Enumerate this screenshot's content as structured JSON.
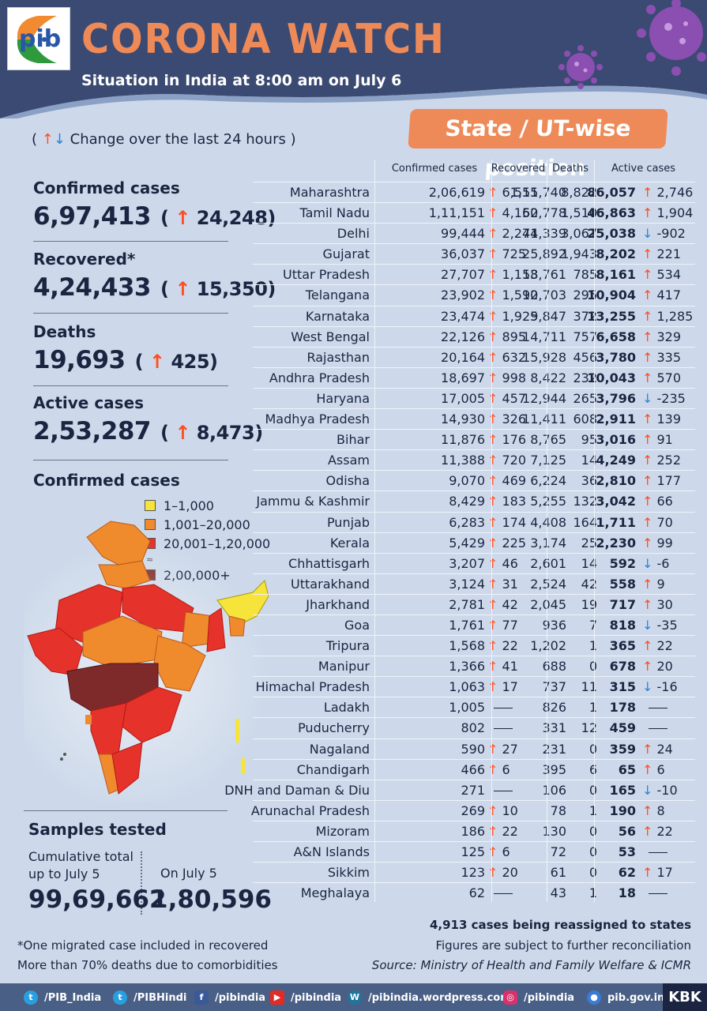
{
  "header": {
    "logo_text": "pib",
    "title": "CORONA WATCH",
    "subtitle": "Situation in India at 8:00 am on July 6",
    "badge": "State / UT-wise position"
  },
  "legend_change": "Change over the last 24 hours",
  "summary": {
    "confirmed": {
      "label": "Confirmed cases",
      "value": "6,97,413",
      "change": "24,248"
    },
    "recovered": {
      "label": "Recovered*",
      "value": "4,24,433",
      "change": "15,350"
    },
    "deaths": {
      "label": "Deaths",
      "value": "19,693",
      "change": "425"
    },
    "active": {
      "label": "Active cases",
      "value": "2,53,287",
      "change": "8,473"
    }
  },
  "map": {
    "title": "Confirmed cases",
    "legend": [
      {
        "label": "1–1,000",
        "color": "#f7e43a"
      },
      {
        "label": "1,001–20,000",
        "color": "#ef8a2d"
      },
      {
        "label": "20,001–1,20,000",
        "color": "#e5322a"
      },
      {
        "label": "2,00,000+",
        "color": "#7f2a2a"
      }
    ]
  },
  "table": {
    "headers": {
      "confirmed": "Confirmed cases",
      "recovered": "Recovered",
      "deaths": "Deaths",
      "active": "Active cases"
    },
    "rows": [
      {
        "state": "Maharashtra",
        "confirmed": "2,06,619",
        "conf_dir": "up",
        "conf_change": "6,555",
        "recovered": "1,11,740",
        "deaths": "8,822",
        "active": "86,057",
        "act_dir": "up",
        "act_change": "2,746"
      },
      {
        "state": "Tamil Nadu",
        "confirmed": "1,11,151",
        "conf_dir": "up",
        "conf_change": "4,150",
        "recovered": "62,778",
        "deaths": "1,510",
        "active": "46,863",
        "act_dir": "up",
        "act_change": "1,904"
      },
      {
        "state": "Delhi",
        "confirmed": "99,444",
        "conf_dir": "up",
        "conf_change": "2,244",
        "recovered": "71,339",
        "deaths": "3,067",
        "active": "25,038",
        "act_dir": "down",
        "act_change": "-902"
      },
      {
        "state": "Gujarat",
        "confirmed": "36,037",
        "conf_dir": "up",
        "conf_change": "725",
        "recovered": "25,892",
        "deaths": "1,943",
        "active": "8,202",
        "act_dir": "up",
        "act_change": "221"
      },
      {
        "state": "Uttar Pradesh",
        "confirmed": "27,707",
        "conf_dir": "up",
        "conf_change": "1,153",
        "recovered": "18,761",
        "deaths": "785",
        "active": "8,161",
        "act_dir": "up",
        "act_change": "534"
      },
      {
        "state": "Telangana",
        "confirmed": "23,902",
        "conf_dir": "up",
        "conf_change": "1,590",
        "recovered": "12,703",
        "deaths": "295",
        "active": "10,904",
        "act_dir": "up",
        "act_change": "417"
      },
      {
        "state": "Karnataka",
        "confirmed": "23,474",
        "conf_dir": "up",
        "conf_change": "1,925",
        "recovered": "9,847",
        "deaths": "372",
        "active": "13,255",
        "act_dir": "up",
        "act_change": "1,285"
      },
      {
        "state": "West Bengal",
        "confirmed": "22,126",
        "conf_dir": "up",
        "conf_change": "895",
        "recovered": "14,711",
        "deaths": "757",
        "active": "6,658",
        "act_dir": "up",
        "act_change": "329"
      },
      {
        "state": "Rajasthan",
        "confirmed": "20,164",
        "conf_dir": "up",
        "conf_change": "632",
        "recovered": "15,928",
        "deaths": "456",
        "active": "3,780",
        "act_dir": "up",
        "act_change": "335"
      },
      {
        "state": "Andhra Pradesh",
        "confirmed": "18,697",
        "conf_dir": "up",
        "conf_change": "998",
        "recovered": "8,422",
        "deaths": "232",
        "active": "10,043",
        "act_dir": "up",
        "act_change": "570"
      },
      {
        "state": "Haryana",
        "confirmed": "17,005",
        "conf_dir": "up",
        "conf_change": "457",
        "recovered": "12,944",
        "deaths": "265",
        "active": "3,796",
        "act_dir": "down",
        "act_change": "-235"
      },
      {
        "state": "Madhya Pradesh",
        "confirmed": "14,930",
        "conf_dir": "up",
        "conf_change": "326",
        "recovered": "11,411",
        "deaths": "608",
        "active": "2,911",
        "act_dir": "up",
        "act_change": "139"
      },
      {
        "state": "Bihar",
        "confirmed": "11,876",
        "conf_dir": "up",
        "conf_change": "176",
        "recovered": "8,765",
        "deaths": "95",
        "active": "3,016",
        "act_dir": "up",
        "act_change": "91"
      },
      {
        "state": "Assam",
        "confirmed": "11,388",
        "conf_dir": "up",
        "conf_change": "720",
        "recovered": "7,125",
        "deaths": "14",
        "active": "4,249",
        "act_dir": "up",
        "act_change": "252"
      },
      {
        "state": "Odisha",
        "confirmed": "9,070",
        "conf_dir": "up",
        "conf_change": "469",
        "recovered": "6,224",
        "deaths": "36",
        "active": "2,810",
        "act_dir": "up",
        "act_change": "177"
      },
      {
        "state": "Jammu & Kashmir",
        "confirmed": "8,429",
        "conf_dir": "up",
        "conf_change": "183",
        "recovered": "5,255",
        "deaths": "132",
        "active": "3,042",
        "act_dir": "up",
        "act_change": "66"
      },
      {
        "state": "Punjab",
        "confirmed": "6,283",
        "conf_dir": "up",
        "conf_change": "174",
        "recovered": "4,408",
        "deaths": "164",
        "active": "1,711",
        "act_dir": "up",
        "act_change": "70"
      },
      {
        "state": "Kerala",
        "confirmed": "5,429",
        "conf_dir": "up",
        "conf_change": "225",
        "recovered": "3,174",
        "deaths": "25",
        "active": "2,230",
        "act_dir": "up",
        "act_change": "99"
      },
      {
        "state": "Chhattisgarh",
        "confirmed": "3,207",
        "conf_dir": "up",
        "conf_change": "46",
        "recovered": "2,601",
        "deaths": "14",
        "active": "592",
        "act_dir": "down",
        "act_change": "-6"
      },
      {
        "state": "Uttarakhand",
        "confirmed": "3,124",
        "conf_dir": "up",
        "conf_change": "31",
        "recovered": "2,524",
        "deaths": "42",
        "active": "558",
        "act_dir": "up",
        "act_change": "9"
      },
      {
        "state": "Jharkhand",
        "confirmed": "2,781",
        "conf_dir": "up",
        "conf_change": "42",
        "recovered": "2,045",
        "deaths": "19",
        "active": "717",
        "act_dir": "up",
        "act_change": "30"
      },
      {
        "state": "Goa",
        "confirmed": "1,761",
        "conf_dir": "up",
        "conf_change": "77",
        "recovered": "936",
        "deaths": "7",
        "active": "818",
        "act_dir": "down",
        "act_change": "-35"
      },
      {
        "state": "Tripura",
        "confirmed": "1,568",
        "conf_dir": "up",
        "conf_change": "22",
        "recovered": "1,202",
        "deaths": "1",
        "active": "365",
        "act_dir": "up",
        "act_change": "22"
      },
      {
        "state": "Manipur",
        "confirmed": "1,366",
        "conf_dir": "up",
        "conf_change": "41",
        "recovered": "688",
        "deaths": "0",
        "active": "678",
        "act_dir": "up",
        "act_change": "20"
      },
      {
        "state": "Himachal Pradesh",
        "confirmed": "1,063",
        "conf_dir": "up",
        "conf_change": "17",
        "recovered": "737",
        "deaths": "11",
        "active": "315",
        "act_dir": "down",
        "act_change": "-16"
      },
      {
        "state": "Ladakh",
        "confirmed": "1,005",
        "conf_dir": "none",
        "conf_change": "",
        "recovered": "826",
        "deaths": "1",
        "active": "178",
        "act_dir": "none",
        "act_change": ""
      },
      {
        "state": "Puducherry",
        "confirmed": "802",
        "conf_dir": "none",
        "conf_change": "",
        "recovered": "331",
        "deaths": "12",
        "active": "459",
        "act_dir": "none",
        "act_change": ""
      },
      {
        "state": "Nagaland",
        "confirmed": "590",
        "conf_dir": "up",
        "conf_change": "27",
        "recovered": "231",
        "deaths": "0",
        "active": "359",
        "act_dir": "up",
        "act_change": "24"
      },
      {
        "state": "Chandigarh",
        "confirmed": "466",
        "conf_dir": "up",
        "conf_change": "6",
        "recovered": "395",
        "deaths": "6",
        "active": "65",
        "act_dir": "up",
        "act_change": "6"
      },
      {
        "state": "DNH and Daman & Diu",
        "confirmed": "271",
        "conf_dir": "none",
        "conf_change": "",
        "recovered": "106",
        "deaths": "0",
        "active": "165",
        "act_dir": "down",
        "act_change": "-10"
      },
      {
        "state": "Arunachal Pradesh",
        "confirmed": "269",
        "conf_dir": "up",
        "conf_change": "10",
        "recovered": "78",
        "deaths": "1",
        "active": "190",
        "act_dir": "up",
        "act_change": "8"
      },
      {
        "state": "Mizoram",
        "confirmed": "186",
        "conf_dir": "up",
        "conf_change": "22",
        "recovered": "130",
        "deaths": "0",
        "active": "56",
        "act_dir": "up",
        "act_change": "22"
      },
      {
        "state": "A&N Islands",
        "confirmed": "125",
        "conf_dir": "up",
        "conf_change": "6",
        "recovered": "72",
        "deaths": "0",
        "active": "53",
        "act_dir": "none",
        "act_change": ""
      },
      {
        "state": "Sikkim",
        "confirmed": "123",
        "conf_dir": "up",
        "conf_change": "20",
        "recovered": "61",
        "deaths": "0",
        "active": "62",
        "act_dir": "up",
        "act_change": "17"
      },
      {
        "state": "Meghalaya",
        "confirmed": "62",
        "conf_dir": "none",
        "conf_change": "",
        "recovered": "43",
        "deaths": "1",
        "active": "18",
        "act_dir": "none",
        "act_change": ""
      }
    ]
  },
  "samples": {
    "title": "Samples tested",
    "cumulative_label_1": "Cumulative total",
    "cumulative_label_2": "up to July 5",
    "cumulative_value": "99,69,662",
    "day_label": "On July 5",
    "day_value": "1,80,596"
  },
  "notes": {
    "reassigned": "4,913 cases being reassigned to states",
    "migrated": "*One migrated case included in recovered",
    "reconciliation": "Figures are subject to further reconciliation",
    "comorbidities": "More than 70% deaths due to comorbidities",
    "source": "Source: Ministry of Health and Family Welfare & ICMR"
  },
  "footer": {
    "social": [
      {
        "icon": "twitter-icon",
        "label": "/PIB_India",
        "color": "#2a9fe0"
      },
      {
        "icon": "twitter-icon",
        "label": "/PIBHindi",
        "color": "#2a9fe0"
      },
      {
        "icon": "facebook-icon",
        "label": "/pibindia",
        "color": "#3b5998"
      },
      {
        "icon": "youtube-icon",
        "label": "/pibindia",
        "color": "#e22b24"
      },
      {
        "icon": "wordpress-icon",
        "label": "/pibindia.wordpress.com",
        "color": "#21759b"
      },
      {
        "icon": "instagram-icon",
        "label": "/pibindia",
        "color": "#d6336c"
      },
      {
        "icon": "web-icon",
        "label": "pib.gov.in",
        "color": "#3a7bd5"
      }
    ],
    "brand": "KBK"
  },
  "colors": {
    "accent": "#ee8a58",
    "navy": "#3b4a72",
    "up": "#ff4d1f",
    "down": "#2a85d8"
  }
}
